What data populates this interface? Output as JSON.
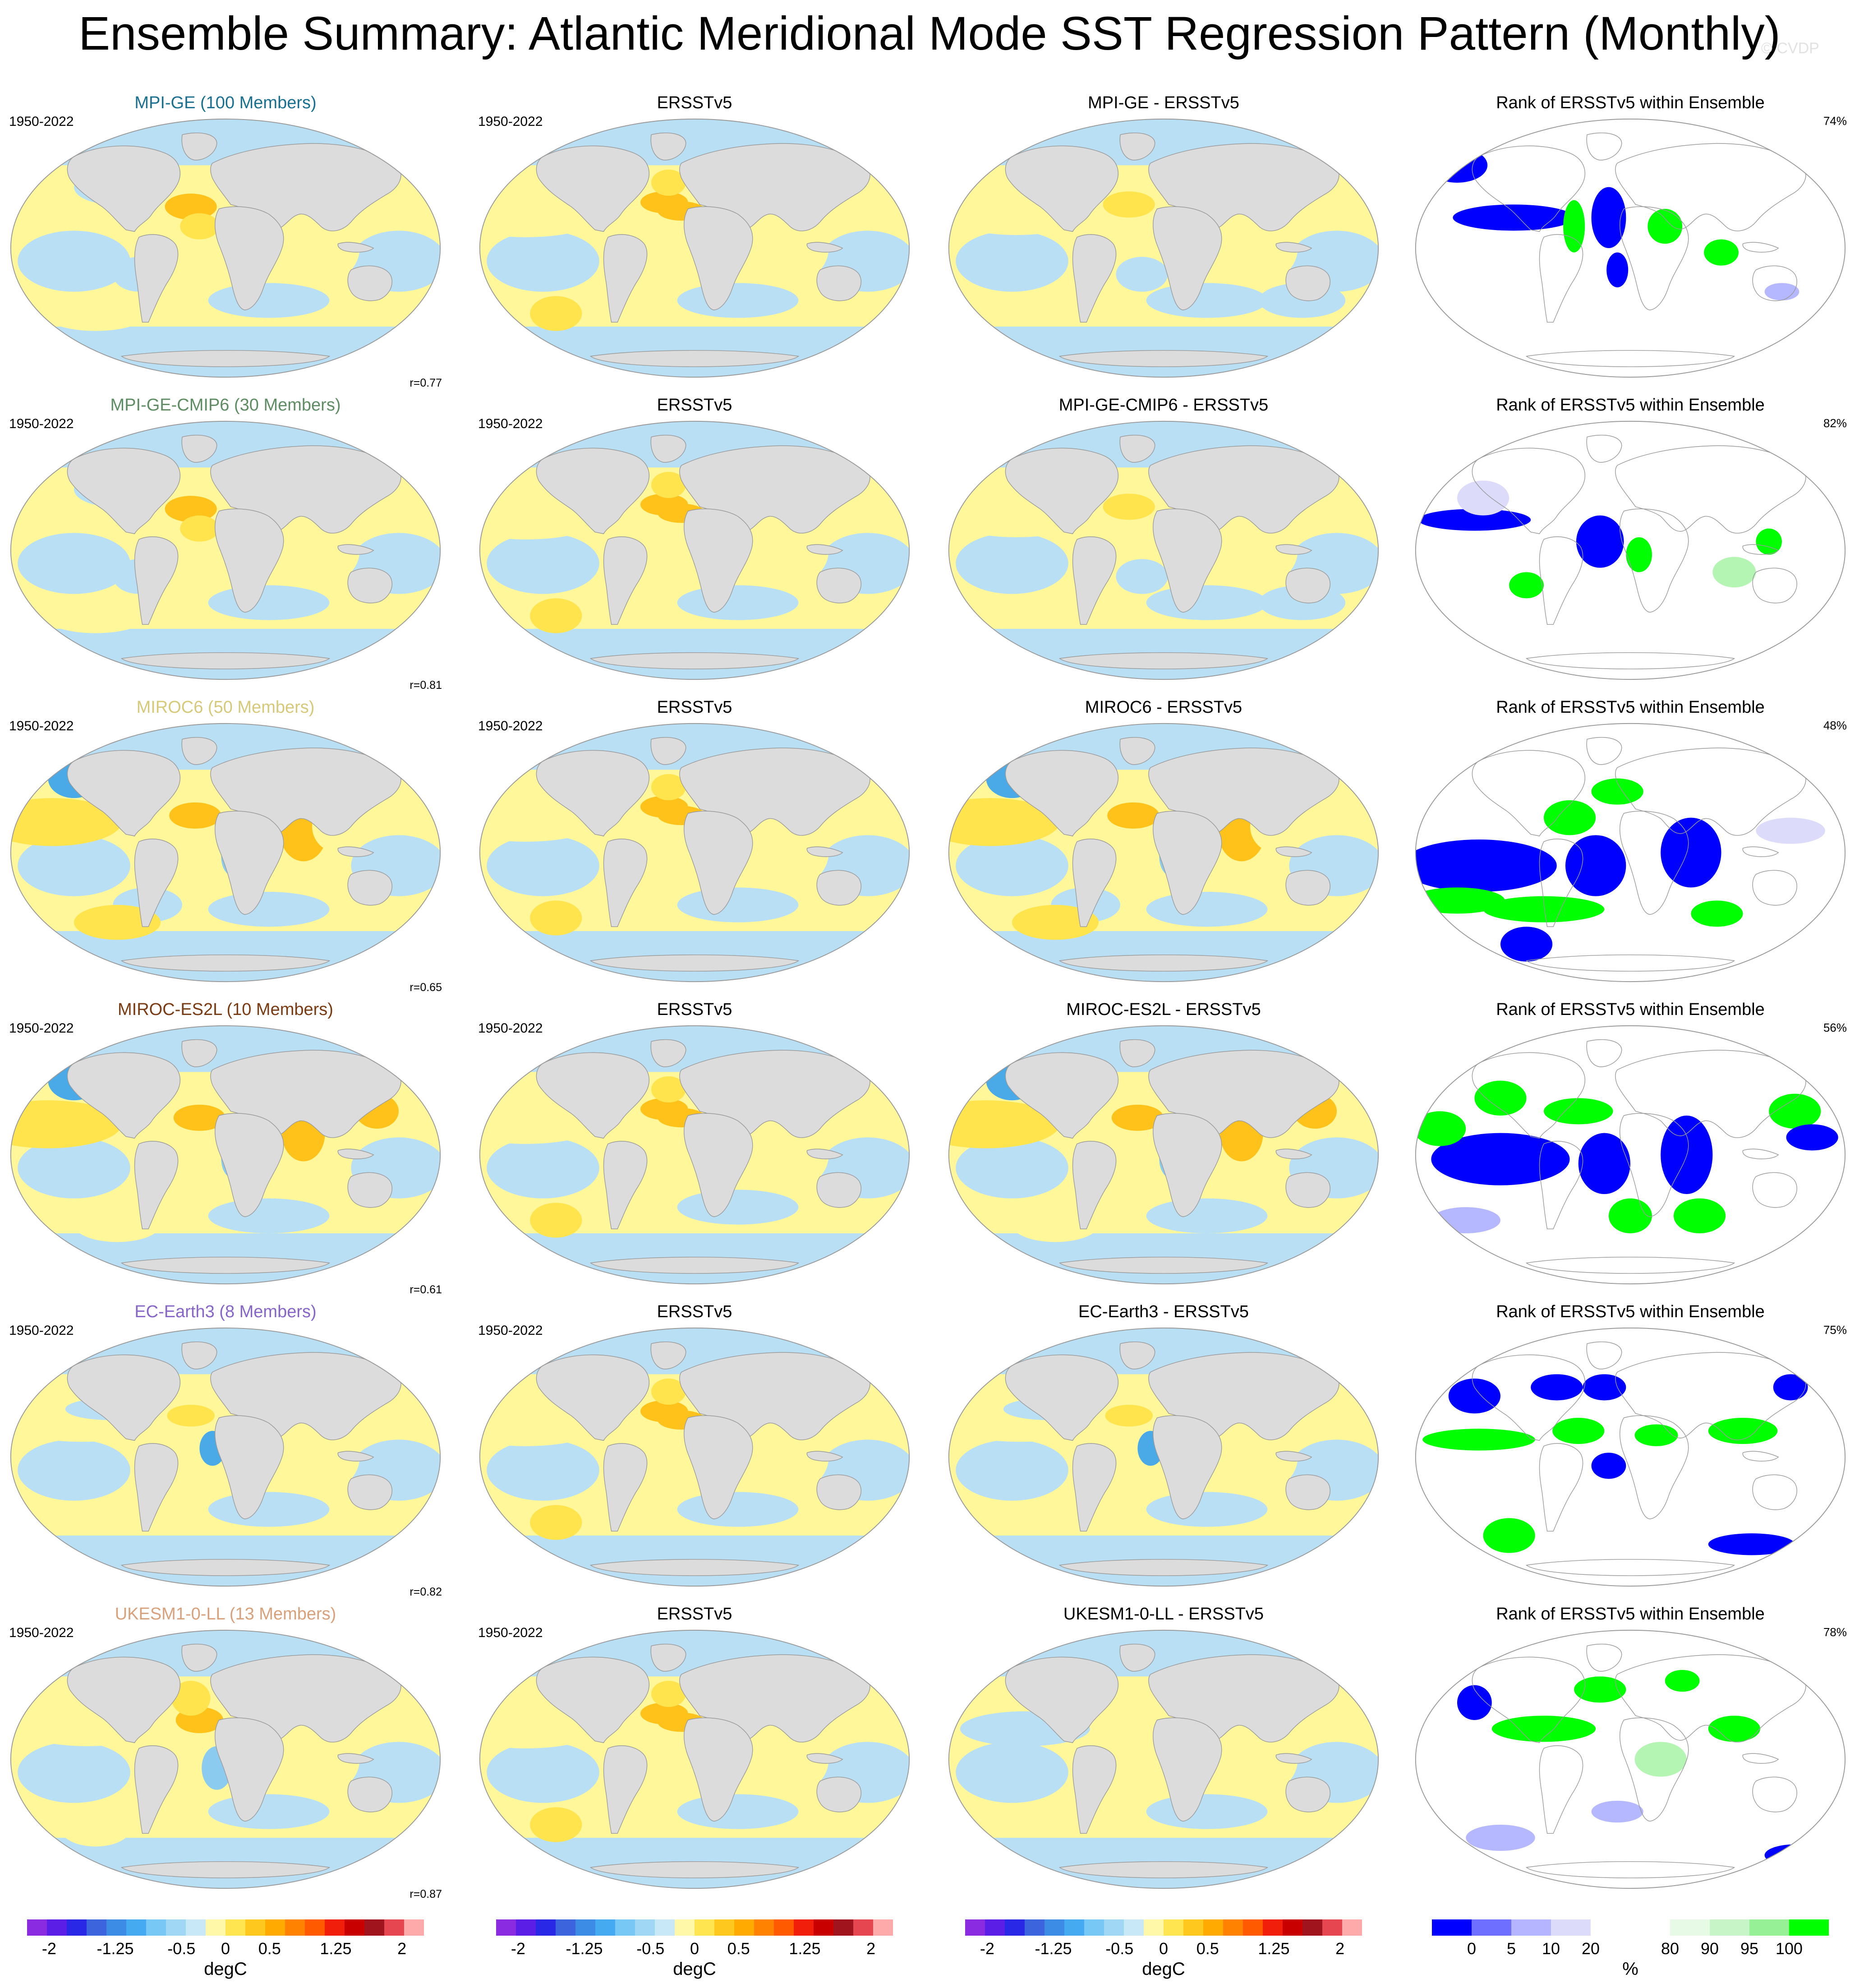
{
  "title": "Ensemble Summary: Atlantic Meridional Mode SST Regression Pattern (Monthly)",
  "credit": "© CVDP",
  "period": "1950-2022",
  "observation_label": "ERSSTv5",
  "rank_title": "Rank of ERSSTv5 within Ensemble",
  "colors": {
    "land": "#dcdcdc",
    "coast": "#9a9a9a",
    "neg_weak": "#b8dff4",
    "neg_mid": "#8ccbf0",
    "neg_strong": "#4aaae8",
    "pos_weak": "#fff79a",
    "pos_mid": "#ffe44d",
    "pos_strong": "#ffc21a",
    "rank_low": "#0000ff",
    "rank_lowmid": "#b6b8ff",
    "rank_lowweak": "#dcdcfa",
    "rank_high": "#00ff00",
    "rank_highmid": "#b4f5b4",
    "rank_highweak": "#e2fbe2"
  },
  "rows": [
    {
      "model": "MPI-GE",
      "ensemble_title": "MPI-GE (100 Members)",
      "title_color": "#1a7090",
      "diff_title": "MPI-GE - ERSSTv5",
      "pattern_corr": "r=0.77",
      "rank_pct": "74%"
    },
    {
      "model": "MPI-GE-CMIP6",
      "ensemble_title": "MPI-GE-CMIP6 (30 Members)",
      "title_color": "#5f8d63",
      "diff_title": "MPI-GE-CMIP6 - ERSSTv5",
      "pattern_corr": "r=0.81",
      "rank_pct": "82%"
    },
    {
      "model": "MIROC6",
      "ensemble_title": "MIROC6 (50 Members)",
      "title_color": "#d7c97a",
      "diff_title": "MIROC6 - ERSSTv5",
      "pattern_corr": "r=0.65",
      "rank_pct": "48%"
    },
    {
      "model": "MIROC-ES2L",
      "ensemble_title": "MIROC-ES2L (10 Members)",
      "title_color": "#7a3a12",
      "diff_title": "MIROC-ES2L - ERSSTv5",
      "pattern_corr": "r=0.61",
      "rank_pct": "56%"
    },
    {
      "model": "EC-Earth3",
      "ensemble_title": "EC-Earth3 (8 Members)",
      "title_color": "#8666c8",
      "diff_title": "EC-Earth3 - ERSSTv5",
      "pattern_corr": "r=0.82",
      "rank_pct": "75%"
    },
    {
      "model": "UKESM1-0-LL",
      "ensemble_title": "UKESM1-0-LL (13 Members)",
      "title_color": "#d9a17b",
      "diff_title": "UKESM1-0-LL - ERSSTv5",
      "pattern_corr": "r=0.87",
      "rank_pct": "78%"
    }
  ],
  "sst_colorbar": {
    "unit": "degC",
    "tick_labels": [
      "-2",
      "-1.25",
      "-0.5",
      "0",
      "0.5",
      "1.25",
      "2"
    ],
    "tick_values": [
      -2,
      -1.25,
      -0.5,
      0,
      0.5,
      1.25,
      2
    ],
    "range": [
      -2.25,
      2.25
    ],
    "colors": [
      "#8a2be2",
      "#5a1ee6",
      "#2828e6",
      "#3c64dc",
      "#3c8ce6",
      "#46aaf0",
      "#78c8f5",
      "#a0d7f5",
      "#c8e8f8",
      "#fff8a8",
      "#ffe650",
      "#ffc81e",
      "#ffaa00",
      "#ff8200",
      "#ff5a00",
      "#f01e0a",
      "#c80000",
      "#a0141e",
      "#e64650",
      "#ffaaaa"
    ]
  },
  "rank_colorbar": {
    "unit": "%",
    "tick_labels": [
      "0",
      "5",
      "10",
      "20",
      "80",
      "90",
      "95",
      "100"
    ],
    "colors": [
      "#0000ff",
      "#6e6eff",
      "#b4b4ff",
      "#dcdcfa",
      "#ffffff",
      "#ffffff",
      "#e6fae6",
      "#c8f5c8",
      "#96f096",
      "#00ff00"
    ]
  }
}
